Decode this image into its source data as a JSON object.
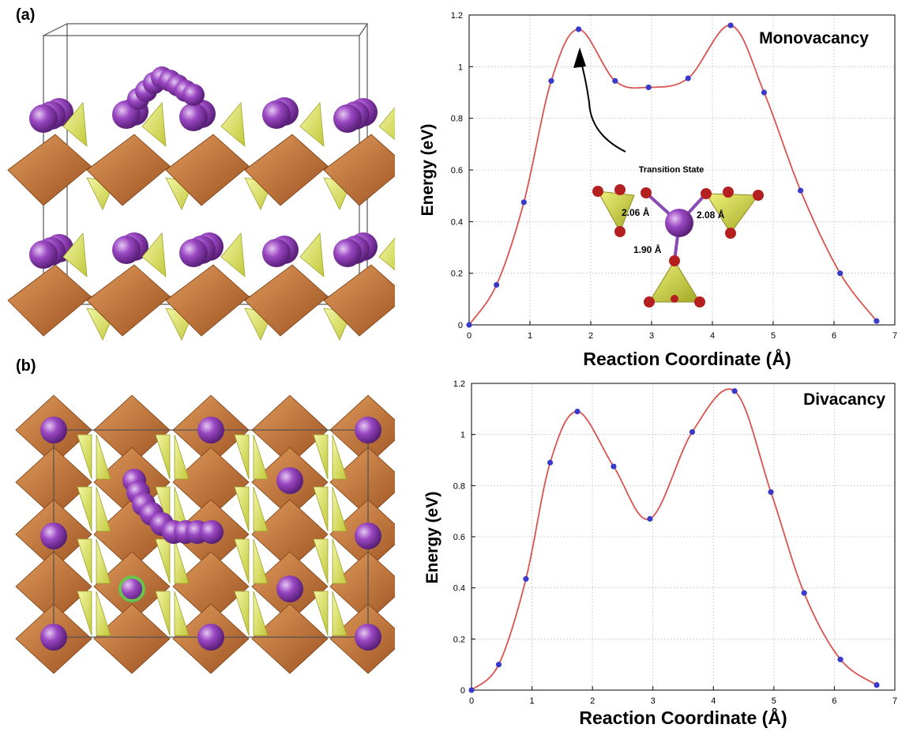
{
  "panels": {
    "a_label": "(a)",
    "b_label": "(b)"
  },
  "colors": {
    "curve": "#d9534f",
    "point": "#3a3ac8",
    "atom": "#9a47c2",
    "octahedron": "#c8783c",
    "tetrahedron": "#d6e04a",
    "oxygen": "#b42020",
    "grid": "#bdbdbd"
  },
  "inset": {
    "label": "Transition State",
    "bond1": "2.06 Å",
    "bond2": "2.08 Å",
    "bond3": "1.90 Å"
  },
  "chart_data": [
    {
      "type": "line",
      "title": "Monovacancy",
      "xlabel": "Reaction Coordinate (Å)",
      "ylabel": "Energy (eV)",
      "xlim": [
        0,
        7
      ],
      "ylim": [
        0,
        1.2
      ],
      "x_ticks": [
        "0",
        "1",
        "2",
        "3",
        "4",
        "5",
        "6",
        "7"
      ],
      "y_ticks": [
        "0",
        "0.2",
        "0.4",
        "0.6",
        "0.8",
        "1",
        "1.2"
      ],
      "grid": true,
      "series": [
        {
          "x": [
            0,
            0.45,
            0.9,
            1.35,
            1.8,
            2.4,
            2.95,
            3.6,
            4.3,
            4.85,
            5.45,
            6.1,
            6.7
          ],
          "y": [
            0,
            0.155,
            0.475,
            0.945,
            1.145,
            0.945,
            0.92,
            0.955,
            1.16,
            0.9,
            0.52,
            0.2,
            0.015
          ]
        }
      ]
    },
    {
      "type": "line",
      "title": "Divacancy",
      "xlabel": "Reaction Coordinate (Å)",
      "ylabel": "Energy (eV)",
      "xlim": [
        0,
        7
      ],
      "ylim": [
        0,
        1.2
      ],
      "x_ticks": [
        "0",
        "1",
        "2",
        "3",
        "4",
        "5",
        "6",
        "7"
      ],
      "y_ticks": [
        "0",
        "0.2",
        "0.4",
        "0.6",
        "0.8",
        "1",
        "1.2"
      ],
      "grid": true,
      "series": [
        {
          "x": [
            0,
            0.45,
            0.9,
            1.3,
            1.75,
            2.35,
            2.95,
            3.65,
            4.35,
            4.95,
            5.5,
            6.1,
            6.7
          ],
          "y": [
            0,
            0.1,
            0.435,
            0.89,
            1.09,
            0.875,
            0.67,
            1.01,
            1.17,
            0.775,
            0.38,
            0.12,
            0.02
          ]
        }
      ]
    }
  ]
}
